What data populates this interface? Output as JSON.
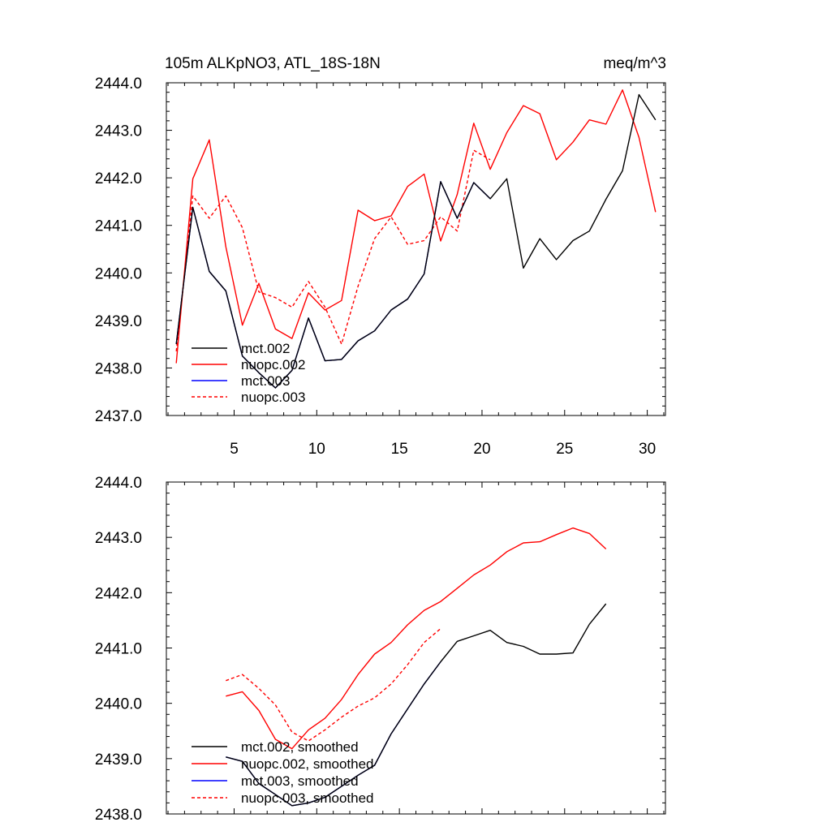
{
  "chart_data": [
    {
      "type": "line",
      "title_left": "105m ALKpNO3, ATL_18S-18N",
      "title_right": "meq/m^3",
      "xlabel": "",
      "ylabel": "",
      "xlim": [
        0.9,
        31.1
      ],
      "ylim": [
        2437.0,
        2444.0
      ],
      "xticks": [
        5,
        10,
        15,
        20,
        25,
        30
      ],
      "xtick_labels": [
        "5",
        "10",
        "15",
        "20",
        "25",
        "30"
      ],
      "yticks": [
        2437.0,
        2438.0,
        2439.0,
        2440.0,
        2441.0,
        2442.0,
        2443.0,
        2444.0
      ],
      "ytick_labels": [
        "2437.0",
        "2438.0",
        "2439.0",
        "2440.0",
        "2441.0",
        "2442.0",
        "2443.0",
        "2444.0"
      ],
      "legend_position": "bottom-left",
      "series": [
        {
          "name": "mct.002",
          "color": "#000000",
          "dash": "solid",
          "x": [
            1.5,
            2.5,
            3.5,
            4.5,
            5.5,
            6.5,
            7.5,
            8.5,
            9.5,
            10.5,
            11.5,
            12.5,
            13.5,
            14.5,
            15.5,
            16.5,
            17.5,
            18.5,
            19.5,
            20.5,
            21.5,
            22.5,
            23.5,
            24.5,
            25.5,
            26.5,
            27.5,
            28.5,
            29.5,
            30.5
          ],
          "values": [
            2438.5,
            2441.38,
            2440.03,
            2439.62,
            2438.25,
            2437.9,
            2437.58,
            2437.95,
            2439.05,
            2438.15,
            2438.18,
            2438.57,
            2438.78,
            2439.22,
            2439.45,
            2439.98,
            2441.92,
            2441.15,
            2441.9,
            2441.56,
            2441.98,
            2440.1,
            2440.72,
            2440.28,
            2440.68,
            2440.88,
            2441.55,
            2442.15,
            2443.75,
            2443.22
          ]
        },
        {
          "name": "nuopc.002",
          "color": "#ff0000",
          "dash": "solid",
          "x": [
            1.5,
            2.5,
            3.5,
            4.5,
            5.5,
            6.5,
            7.5,
            8.5,
            9.5,
            10.5,
            11.5,
            12.5,
            13.5,
            14.5,
            15.5,
            16.5,
            17.5,
            18.5,
            19.5,
            20.5,
            21.5,
            22.5,
            23.5,
            24.5,
            25.5,
            26.5,
            27.5,
            28.5,
            29.5,
            30.5
          ],
          "values": [
            2438.1,
            2441.98,
            2442.8,
            2440.55,
            2438.9,
            2439.78,
            2438.82,
            2438.62,
            2439.58,
            2439.22,
            2439.42,
            2441.32,
            2441.1,
            2441.2,
            2441.82,
            2442.08,
            2440.67,
            2441.65,
            2443.15,
            2442.18,
            2442.95,
            2443.52,
            2443.35,
            2442.38,
            2442.75,
            2443.22,
            2443.13,
            2443.85,
            2442.85,
            2441.28
          ]
        },
        {
          "name": "mct.003",
          "color": "#0000ff",
          "dash": "solid",
          "x": [
            1.5,
            2.5,
            3.5,
            4.5,
            5.5,
            6.5,
            7.5,
            8.5,
            9.5,
            10.5,
            11.5,
            12.5,
            13.5,
            14.5,
            15.5,
            16.5,
            17.5,
            18.5,
            19.5,
            20.5
          ],
          "values": [
            2438.5,
            2441.38,
            2440.03,
            2439.62,
            2438.25,
            2437.9,
            2437.58,
            2437.95,
            2439.05,
            2438.15,
            2438.18,
            2438.57,
            2438.78,
            2439.22,
            2439.45,
            2439.98,
            2441.92,
            2441.15,
            2441.9,
            2441.56
          ]
        },
        {
          "name": "nuopc.003",
          "color": "#ff0000",
          "dash": "dashed",
          "x": [
            1.5,
            2.5,
            3.5,
            4.5,
            5.5,
            6.5,
            7.5,
            8.5,
            9.5,
            10.5,
            11.5,
            12.5,
            13.5,
            14.5,
            15.5,
            16.5,
            17.5,
            18.5,
            19.5,
            20.5
          ],
          "values": [
            2438.35,
            2441.62,
            2441.15,
            2441.62,
            2440.95,
            2439.6,
            2439.48,
            2439.28,
            2439.82,
            2439.28,
            2438.5,
            2439.72,
            2440.72,
            2441.18,
            2440.6,
            2440.68,
            2441.18,
            2440.88,
            2442.58,
            2442.38
          ]
        }
      ]
    },
    {
      "type": "line",
      "title_left": "",
      "title_right": "",
      "xlabel": "",
      "ylabel": "",
      "xlim": [
        0.9,
        31.1
      ],
      "ylim": [
        2438.0,
        2444.0
      ],
      "xticks": [
        5,
        10,
        15,
        20,
        25,
        30
      ],
      "xtick_labels": [],
      "yticks": [
        2438.0,
        2439.0,
        2440.0,
        2441.0,
        2442.0,
        2443.0,
        2444.0
      ],
      "ytick_labels": [
        "2438.0",
        "2439.0",
        "2440.0",
        "2441.0",
        "2442.0",
        "2443.0",
        "2444.0"
      ],
      "legend_position": "bottom-left",
      "series": [
        {
          "name": "mct.002, smoothed",
          "color": "#000000",
          "dash": "solid",
          "x": [
            4.5,
            5.5,
            6.5,
            7.5,
            8.5,
            9.5,
            10.5,
            11.5,
            12.5,
            13.5,
            14.5,
            15.5,
            16.5,
            17.5,
            18.5,
            19.5,
            20.5,
            21.5,
            22.5,
            23.5,
            24.5,
            25.5,
            26.5,
            27.5
          ],
          "values": [
            2439.03,
            2438.95,
            2438.55,
            2438.35,
            2438.15,
            2438.2,
            2438.3,
            2438.5,
            2438.7,
            2438.88,
            2439.45,
            2439.9,
            2440.35,
            2440.75,
            2441.12,
            2441.22,
            2441.32,
            2441.1,
            2441.03,
            2440.89,
            2440.89,
            2440.91,
            2441.43,
            2441.8
          ]
        },
        {
          "name": "nuopc.002, smoothed",
          "color": "#ff0000",
          "dash": "solid",
          "x": [
            4.5,
            5.5,
            6.5,
            7.5,
            8.5,
            9.5,
            10.5,
            11.5,
            12.5,
            13.5,
            14.5,
            15.5,
            16.5,
            17.5,
            18.5,
            19.5,
            20.5,
            21.5,
            22.5,
            23.5,
            24.5,
            25.5,
            26.5,
            27.5
          ],
          "values": [
            2440.13,
            2440.21,
            2439.87,
            2439.35,
            2439.18,
            2439.52,
            2439.73,
            2440.07,
            2440.52,
            2440.89,
            2441.1,
            2441.42,
            2441.68,
            2441.84,
            2442.08,
            2442.32,
            2442.5,
            2442.74,
            2442.9,
            2442.92,
            2443.05,
            2443.17,
            2443.07,
            2442.79
          ]
        },
        {
          "name": "mct.003, smoothed",
          "color": "#0000ff",
          "dash": "solid",
          "x": [
            4.5,
            5.5,
            6.5,
            7.5,
            8.5,
            9.5,
            10.5,
            11.5,
            12.5,
            13.5,
            14.5,
            15.5,
            16.5,
            17.5
          ],
          "values": [
            2439.03,
            2438.95,
            2438.55,
            2438.35,
            2438.15,
            2438.2,
            2438.3,
            2438.5,
            2438.7,
            2438.88,
            2439.45,
            2439.9,
            2440.35,
            2440.75
          ]
        },
        {
          "name": "nuopc.003, smoothed",
          "color": "#ff0000",
          "dash": "dashed",
          "x": [
            4.5,
            5.5,
            6.5,
            7.5,
            8.5,
            9.5,
            10.5,
            11.5,
            12.5,
            13.5,
            14.5,
            15.5,
            16.5,
            17.5
          ],
          "values": [
            2440.41,
            2440.52,
            2440.27,
            2439.97,
            2439.48,
            2439.32,
            2439.52,
            2439.75,
            2439.95,
            2440.1,
            2440.35,
            2440.7,
            2441.1,
            2441.35
          ]
        }
      ]
    }
  ]
}
